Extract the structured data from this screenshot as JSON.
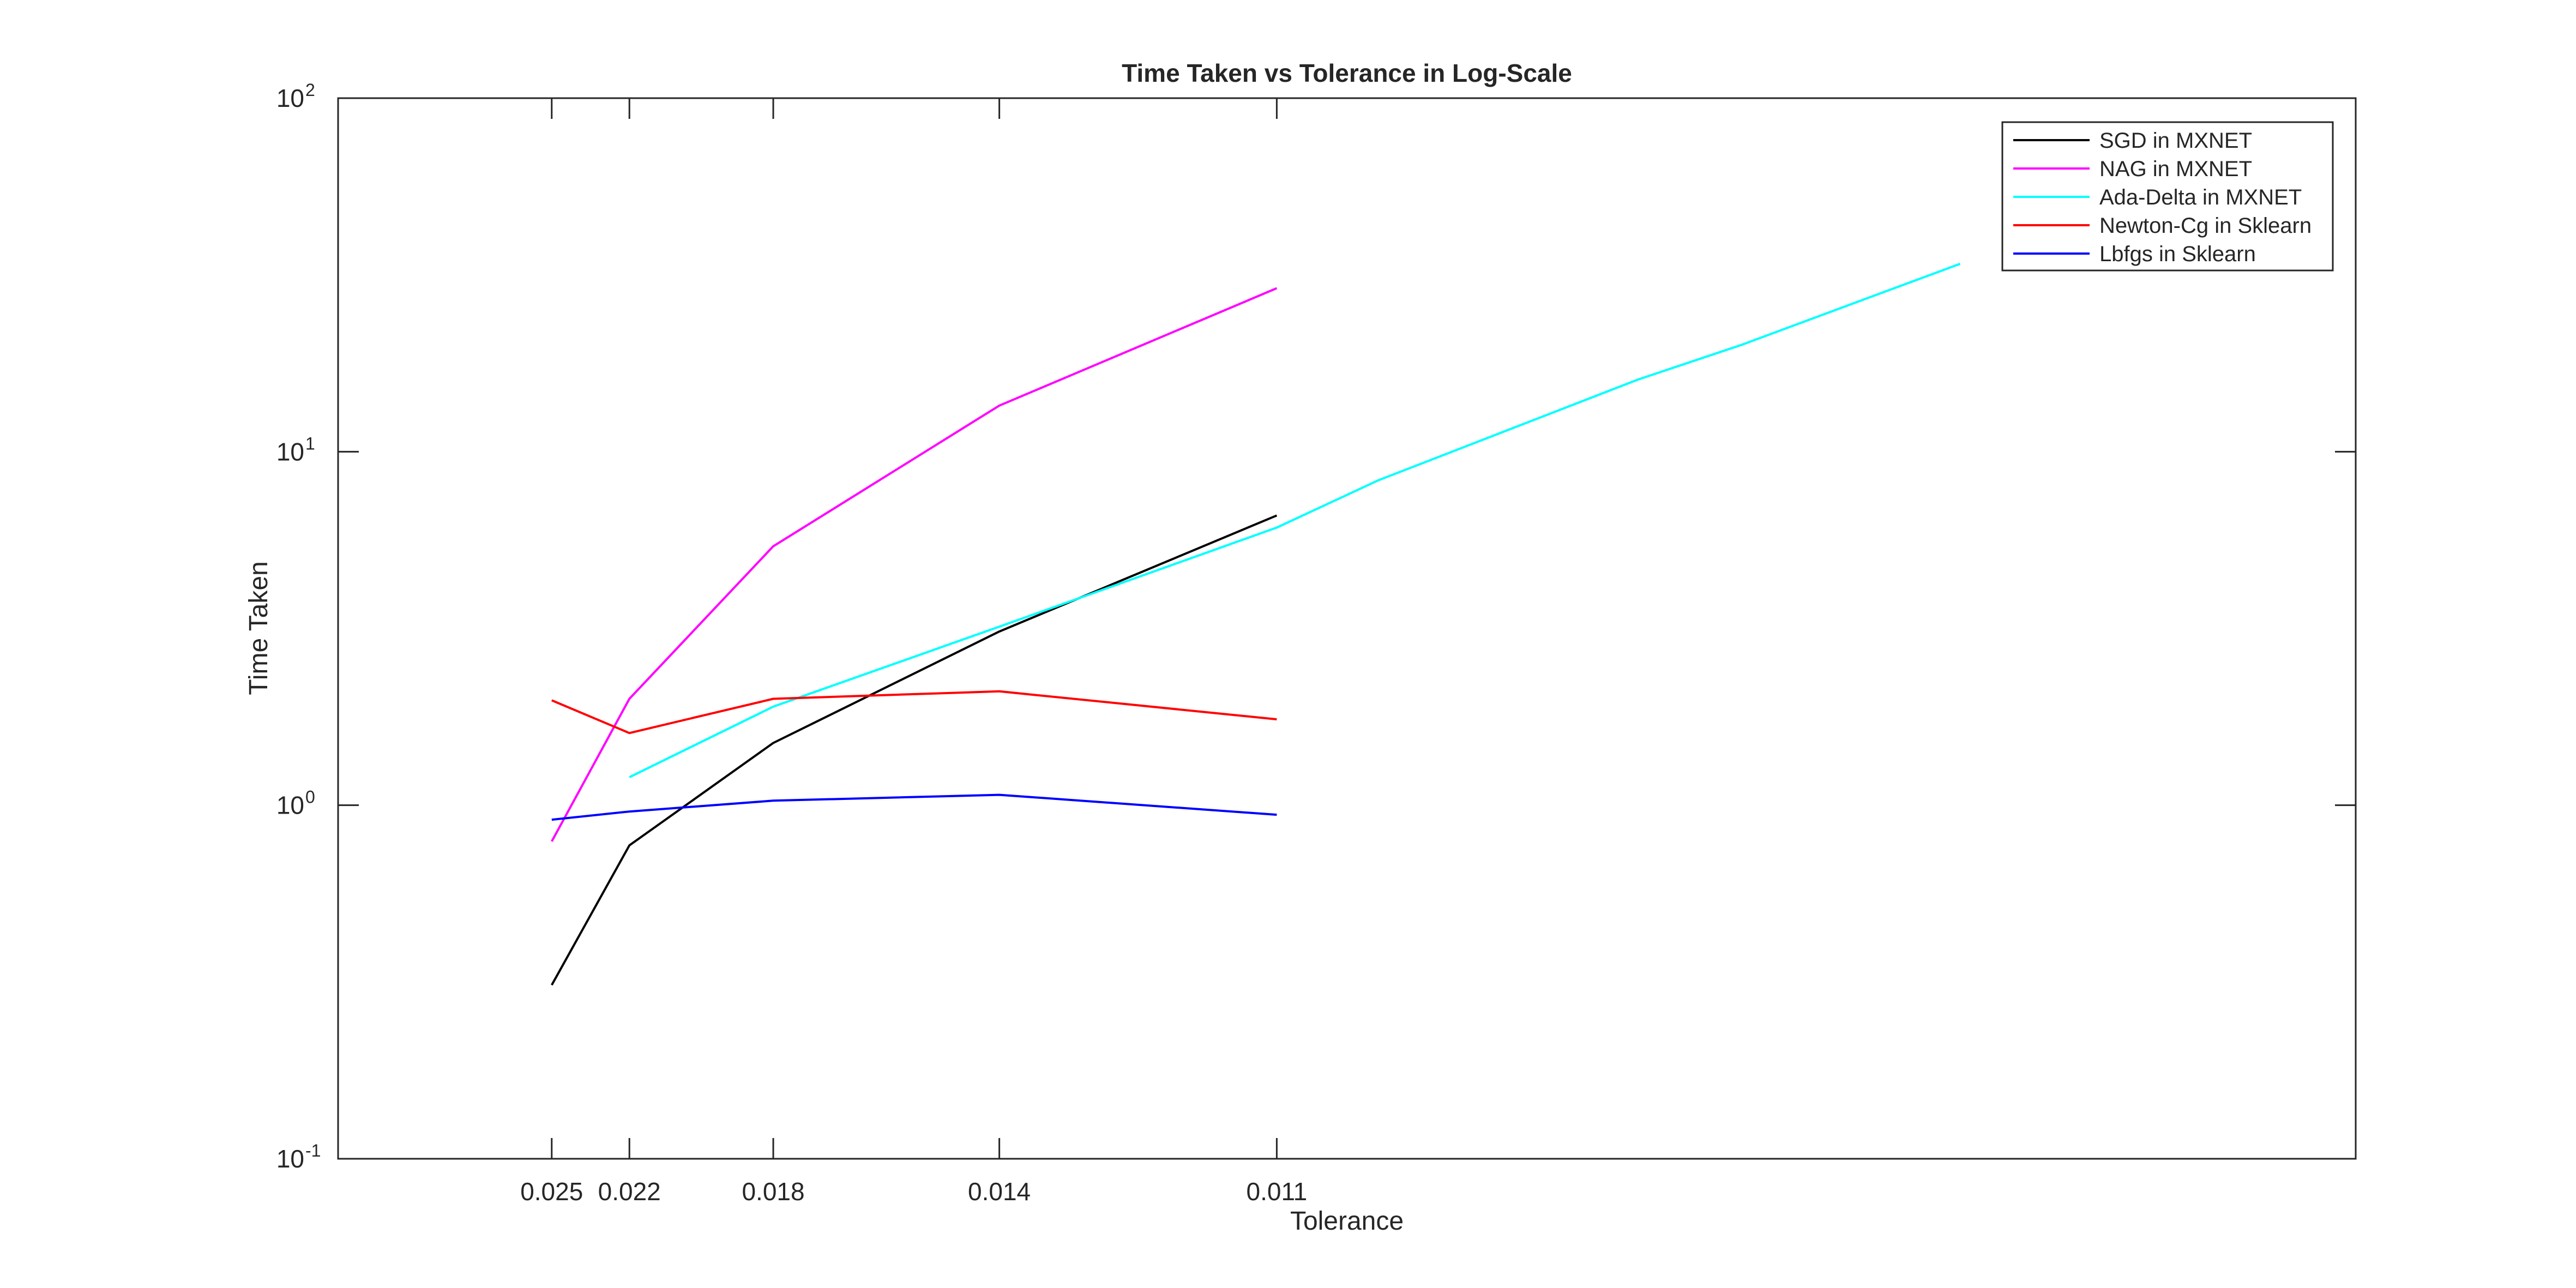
{
  "chart_data": {
    "type": "line",
    "title": "Time Taken vs Tolerance in Log-Scale",
    "xlabel": "Tolerance",
    "ylabel": "Time Taken",
    "x_axis": {
      "scale": "reciprocal",
      "direction": "decreasing tolerance to the right",
      "ticks": [
        0.025,
        0.022,
        0.018,
        0.014,
        0.011
      ],
      "tick_labels": [
        "0.025",
        "0.022",
        "0.018",
        "0.014",
        "0.011"
      ],
      "range": [
        0.04,
        0.006
      ]
    },
    "y_axis": {
      "scale": "log",
      "ylim": [
        0.1,
        100
      ],
      "ticks": [
        0.1,
        1,
        10,
        100
      ],
      "tick_labels": [
        {
          "base": "10",
          "exp": "-1"
        },
        {
          "base": "10",
          "exp": "0"
        },
        {
          "base": "10",
          "exp": "1"
        },
        {
          "base": "10",
          "exp": "2"
        }
      ]
    },
    "grid": false,
    "legend_position": "top-right",
    "series": [
      {
        "name": "SGD in MXNET",
        "color": "#000000",
        "points": [
          {
            "x": 0.025,
            "y": 0.31
          },
          {
            "x": 0.022,
            "y": 0.77
          },
          {
            "x": 0.018,
            "y": 1.5
          },
          {
            "x": 0.014,
            "y": 3.1
          },
          {
            "x": 0.011,
            "y": 6.6
          }
        ]
      },
      {
        "name": "NAG in MXNET",
        "color": "#ff00ff",
        "points": [
          {
            "x": 0.025,
            "y": 0.79
          },
          {
            "x": 0.022,
            "y": 2.0
          },
          {
            "x": 0.018,
            "y": 5.4
          },
          {
            "x": 0.014,
            "y": 13.5
          },
          {
            "x": 0.011,
            "y": 29.0
          }
        ]
      },
      {
        "name": "Ada-Delta in MXNET",
        "color": "#00ffff",
        "points": [
          {
            "x": 0.022,
            "y": 1.2
          },
          {
            "x": 0.018,
            "y": 1.9
          },
          {
            "x": 0.014,
            "y": 3.2
          },
          {
            "x": 0.011,
            "y": 6.1
          },
          {
            "x": 0.0102,
            "y": 8.3
          },
          {
            "x": 0.0086,
            "y": 16.0
          },
          {
            "x": 0.0081,
            "y": 20.0
          },
          {
            "x": 0.0072,
            "y": 34.0
          }
        ]
      },
      {
        "name": "Newton-Cg in Sklearn",
        "color": "#ff0000",
        "points": [
          {
            "x": 0.025,
            "y": 1.98
          },
          {
            "x": 0.022,
            "y": 1.6
          },
          {
            "x": 0.018,
            "y": 2.0
          },
          {
            "x": 0.014,
            "y": 2.1
          },
          {
            "x": 0.011,
            "y": 1.75
          }
        ]
      },
      {
        "name": "Lbfgs in Sklearn",
        "color": "#0000ff",
        "points": [
          {
            "x": 0.025,
            "y": 0.91
          },
          {
            "x": 0.022,
            "y": 0.96
          },
          {
            "x": 0.018,
            "y": 1.03
          },
          {
            "x": 0.014,
            "y": 1.07
          },
          {
            "x": 0.011,
            "y": 0.94
          }
        ]
      }
    ]
  }
}
